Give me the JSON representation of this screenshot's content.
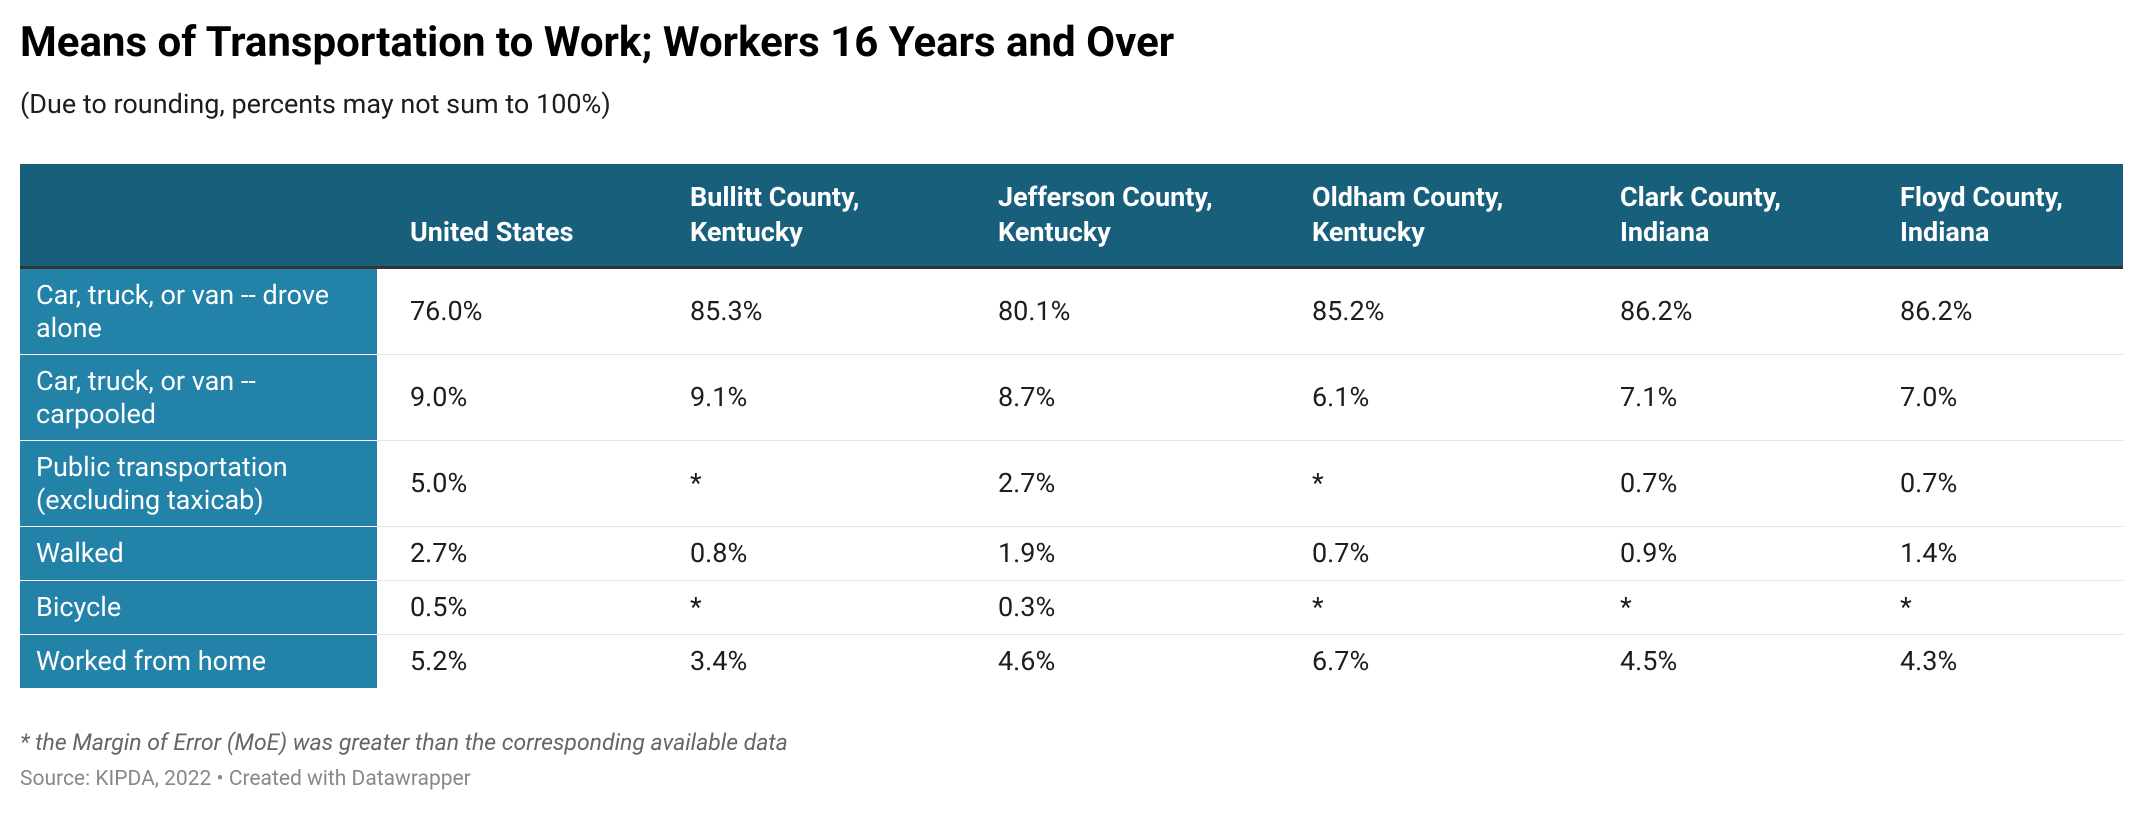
{
  "header": {
    "title": "Means of Transportation to Work; Workers 16 Years and Over",
    "subtitle": "(Due to rounding, percents may not sum to 100%)"
  },
  "table": {
    "columns": [
      "United States",
      "Bullitt County, Kentucky",
      "Jefferson County, Kentucky",
      "Oldham County, Kentucky",
      "Clark County, Indiana",
      "Floyd County, Indiana"
    ],
    "rows": [
      {
        "label": "Car, truck, or van -- drove alone",
        "values": [
          "76.0%",
          "85.3%",
          "80.1%",
          "85.2%",
          "86.2%",
          "86.2%"
        ]
      },
      {
        "label": "Car, truck, or van -- carpooled",
        "values": [
          "9.0%",
          "9.1%",
          "8.7%",
          "6.1%",
          "7.1%",
          "7.0%"
        ]
      },
      {
        "label": "Public transportation (excluding taxicab)",
        "values": [
          "5.0%",
          "*",
          "2.7%",
          "*",
          "0.7%",
          "0.7%"
        ]
      },
      {
        "label": "Walked",
        "values": [
          "2.7%",
          "0.8%",
          "1.9%",
          "0.7%",
          "0.9%",
          "1.4%"
        ]
      },
      {
        "label": "Bicycle",
        "values": [
          "0.5%",
          "*",
          "0.3%",
          "*",
          "*",
          "*"
        ]
      },
      {
        "label": "Worked from home",
        "values": [
          "5.2%",
          "3.4%",
          "4.6%",
          "6.7%",
          "4.5%",
          "4.3%"
        ]
      }
    ]
  },
  "footer": {
    "note": "* the Margin of Error (MoE) was greater than the corresponding available data",
    "source": "Source: KIPDA, 2022 • Created with Datawrapper"
  }
}
